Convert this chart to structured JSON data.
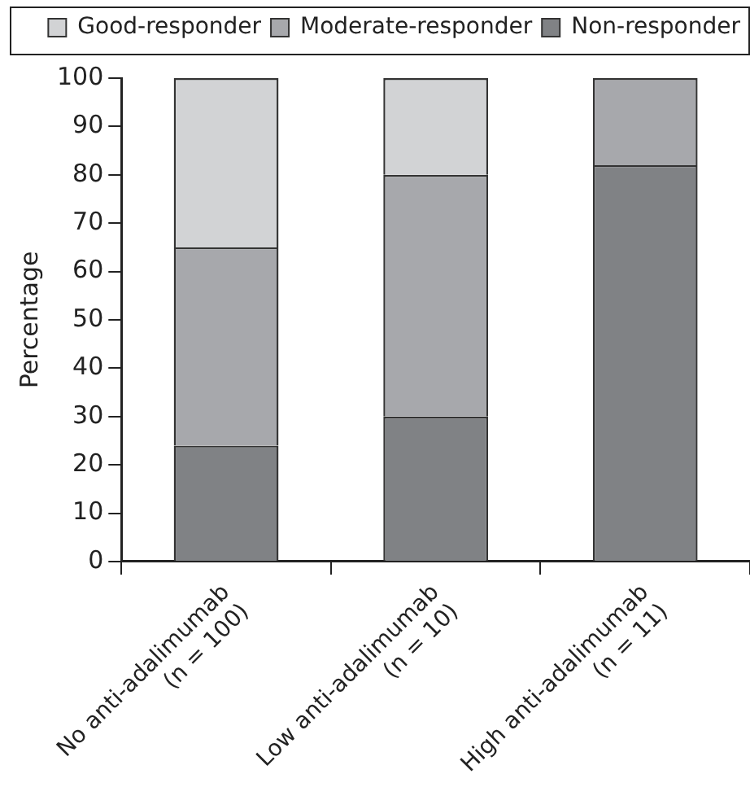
{
  "chart_data": {
    "type": "bar",
    "stacked": true,
    "ylabel": "Percentage",
    "categories": [
      "No anti-adalimumab\n(n = 100)",
      "Low anti-adalimumab\n(n = 10)",
      "High anti-adalimumab\n(n = 11)"
    ],
    "series": [
      {
        "name": "Non-responder",
        "color": "#808285",
        "values": [
          24,
          30,
          82
        ]
      },
      {
        "name": "Moderate-responder",
        "color": "#a7a8ac",
        "values": [
          41,
          50,
          18
        ]
      },
      {
        "name": "Good-responder",
        "color": "#d2d3d5",
        "values": [
          35,
          20,
          null
        ]
      }
    ],
    "ylim": [
      0,
      100
    ],
    "yticks": [
      0,
      10,
      20,
      30,
      40,
      50,
      60,
      70,
      80,
      90,
      100
    ],
    "grid": false,
    "legend": "top"
  }
}
